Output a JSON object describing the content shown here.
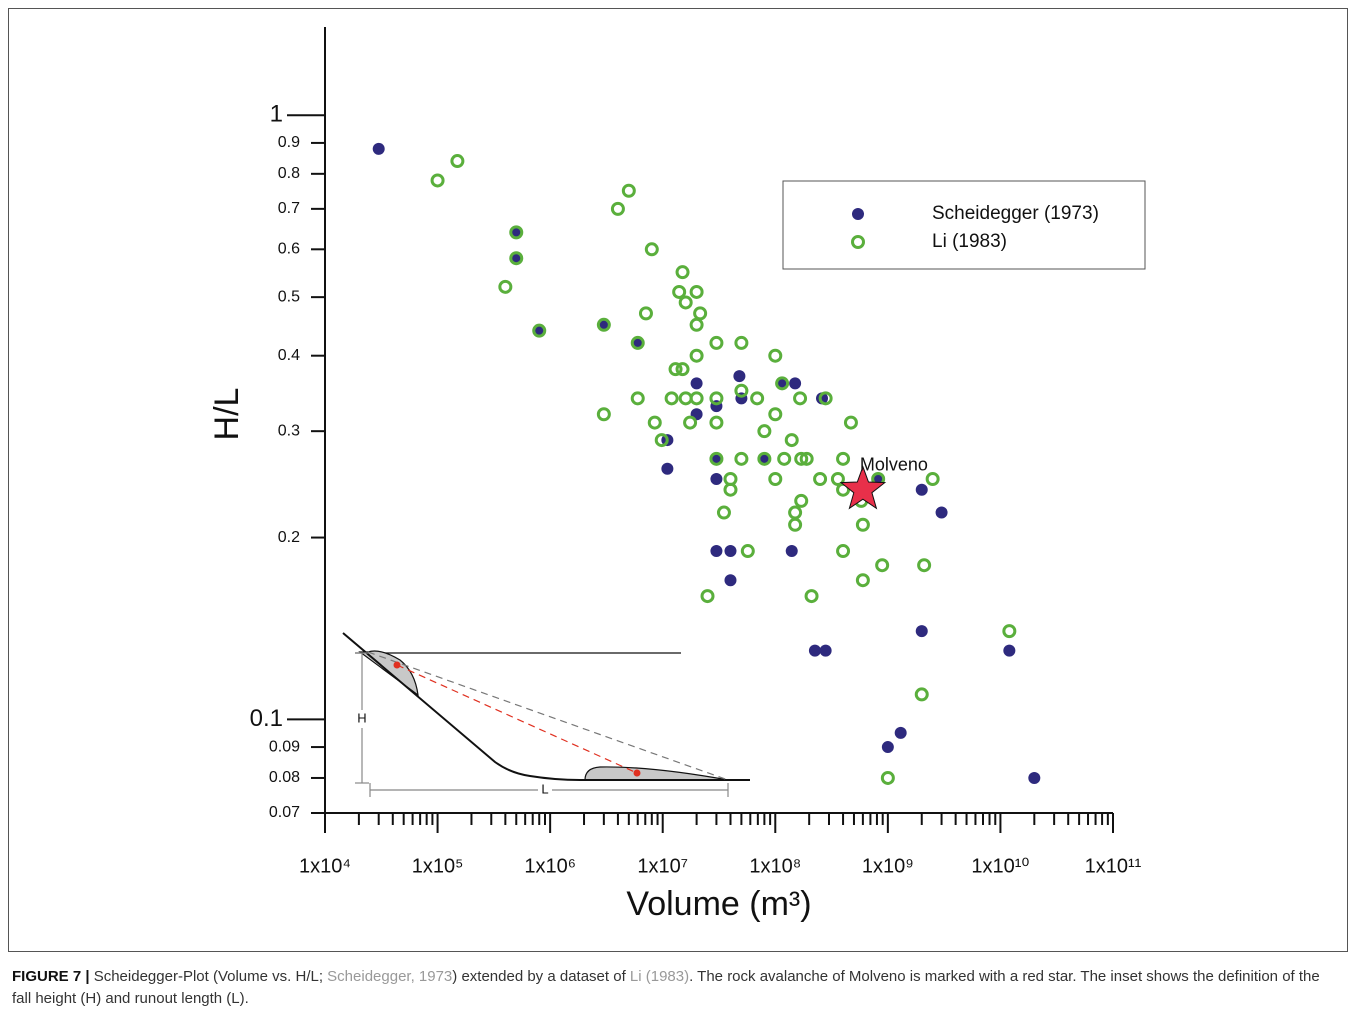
{
  "chart_data": {
    "type": "scatter",
    "xlabel": "Volume (m³)",
    "ylabel": "H/L",
    "xscale": "log",
    "yscale": "log",
    "xlim": [
      10000,
      100000000000
    ],
    "ylim": [
      0.07,
      1.4
    ],
    "xticks": [
      {
        "value": 10000,
        "label": "1x10⁴"
      },
      {
        "value": 100000,
        "label": "1x10⁵"
      },
      {
        "value": 1000000,
        "label": "1x10⁶"
      },
      {
        "value": 10000000,
        "label": "1x10⁷"
      },
      {
        "value": 100000000,
        "label": "1x10⁸"
      },
      {
        "value": 1000000000,
        "label": "1x10⁹"
      },
      {
        "value": 10000000000,
        "label": "1x10¹⁰"
      },
      {
        "value": 100000000000,
        "label": "1x10¹¹"
      }
    ],
    "xminorticks": [
      20000,
      30000,
      40000,
      50000,
      60000,
      70000,
      80000,
      90000,
      200000,
      300000,
      400000,
      500000,
      600000,
      700000,
      800000,
      900000,
      2000000,
      3000000,
      4000000,
      5000000,
      6000000,
      7000000,
      8000000,
      9000000,
      20000000,
      30000000,
      40000000,
      50000000,
      60000000,
      70000000,
      80000000,
      90000000,
      200000000,
      300000000,
      400000000,
      500000000,
      600000000,
      700000000,
      800000000,
      900000000,
      2000000000,
      3000000000,
      4000000000,
      5000000000,
      6000000000,
      7000000000,
      8000000000,
      9000000000,
      20000000000,
      30000000000,
      40000000000,
      50000000000,
      60000000000,
      70000000000,
      80000000000,
      90000000000
    ],
    "yticks": [
      0.07,
      0.08,
      0.09,
      0.1,
      0.2,
      0.3,
      0.4,
      0.5,
      0.6,
      0.7,
      0.8,
      0.9,
      1
    ],
    "legend": "upper right",
    "series": [
      {
        "name": "Scheidegger (1973)",
        "color": "#2e2a7e",
        "marker": "filled",
        "x": [
          30000,
          500000,
          500000,
          810000,
          3000000,
          6000000,
          11000000,
          11000000,
          20000000,
          20000000,
          30000000,
          30000000,
          30000000,
          30000000,
          40000000,
          40000000,
          48000000,
          50000000,
          81000000,
          115000000,
          150000000,
          140000000,
          260000000,
          225000000,
          280000000,
          820000000,
          2000000000,
          3000000000,
          2000000000,
          1000000000,
          1300000000,
          12000000000,
          20000000000
        ],
        "values": [
          0.88,
          0.64,
          0.58,
          0.44,
          0.45,
          0.42,
          0.29,
          0.26,
          0.36,
          0.32,
          0.33,
          0.27,
          0.25,
          0.19,
          0.19,
          0.17,
          0.37,
          0.34,
          0.27,
          0.36,
          0.36,
          0.19,
          0.34,
          0.13,
          0.13,
          0.25,
          0.24,
          0.22,
          0.14,
          0.09,
          0.095,
          0.13,
          0.08
        ]
      },
      {
        "name": "Li (1983)",
        "color": "#5aaf3c",
        "marker": "ring",
        "x": [
          100000,
          150000,
          400000,
          500000,
          500000,
          800000,
          3000000,
          3000000,
          4000000,
          5000000,
          6000000,
          6000000,
          7100000,
          8000000,
          8500000,
          9800000,
          12000000,
          13000000,
          15000000,
          14000000,
          16000000,
          15000000,
          16000000,
          17500000,
          20000000,
          21500000,
          20000000,
          20000000,
          20000000,
          25000000,
          30000000,
          30000000,
          30000000,
          30000000,
          35000000,
          40000000,
          40000000,
          50000000,
          50000000,
          50000000,
          57000000,
          69000000,
          80000000,
          80000000,
          100000000,
          100000000,
          100000000,
          115000000,
          120000000,
          140000000,
          150000000,
          150000000,
          166000000,
          170000000,
          190000000,
          170000000,
          210000000,
          250000000,
          280000000,
          360000000,
          400000000,
          400000000,
          400000000,
          470000000,
          580000000,
          600000000,
          600000000,
          820000000,
          890000000,
          1000000000,
          2000000000,
          2100000000,
          2500000000,
          12000000000
        ],
        "values": [
          0.78,
          0.84,
          0.52,
          0.64,
          0.58,
          0.44,
          0.45,
          0.32,
          0.7,
          0.75,
          0.42,
          0.34,
          0.47,
          0.6,
          0.31,
          0.29,
          0.34,
          0.38,
          0.55,
          0.51,
          0.49,
          0.38,
          0.34,
          0.31,
          0.51,
          0.47,
          0.45,
          0.4,
          0.34,
          0.16,
          0.42,
          0.34,
          0.31,
          0.27,
          0.22,
          0.25,
          0.24,
          0.42,
          0.35,
          0.27,
          0.19,
          0.34,
          0.3,
          0.27,
          0.4,
          0.32,
          0.25,
          0.36,
          0.27,
          0.29,
          0.22,
          0.21,
          0.34,
          0.27,
          0.27,
          0.23,
          0.16,
          0.25,
          0.34,
          0.25,
          0.27,
          0.24,
          0.19,
          0.31,
          0.23,
          0.21,
          0.17,
          0.25,
          0.18,
          0.08,
          0.11,
          0.18,
          0.25,
          0.14
        ]
      }
    ],
    "highlight": {
      "label": "Molveno",
      "x": 600000000,
      "y": 0.24,
      "color": "#e8304a"
    }
  },
  "inset": {
    "height_label": "H",
    "length_label": "L"
  },
  "caption": {
    "label": "FIGURE 7 |",
    "parts": [
      " Scheidegger-Plot (Volume vs. H/L; ",
      "Scheidegger, 1973",
      ") extended by a dataset of ",
      "Li (1983)",
      ". The rock avalanche of Molveno is marked with a red star. The inset shows the definition of the fall height (H) and runout length (L)."
    ]
  }
}
